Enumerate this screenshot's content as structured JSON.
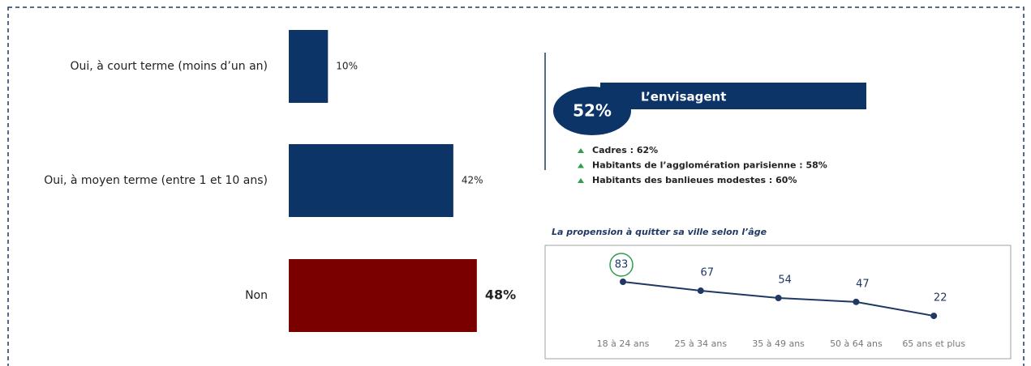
{
  "chart_data": [
    {
      "type": "hbar",
      "categories": [
        "Oui, à court terme (moins d’un an)",
        "Oui, à moyen terme (entre 1 et 10 ans)",
        "Non"
      ],
      "values": [
        10,
        42,
        48
      ],
      "value_labels": [
        "10%",
        "42%",
        "48%"
      ],
      "colors": [
        "#0d3466",
        "#0d3466",
        "#7a0000"
      ]
    },
    {
      "type": "line",
      "title": "La propension à quitter sa ville selon l’âge",
      "categories": [
        "18 à 24 ans",
        "25 à 34 ans",
        "35 à 49 ans",
        "50 à 64 ans",
        "65 ans et plus"
      ],
      "values": [
        83,
        67,
        54,
        47,
        22
      ],
      "color": "#1f3864"
    }
  ],
  "callout": {
    "value": "52%",
    "label": "L’envisagent",
    "bullets": [
      "Cadres : 62%",
      "Habitants de l’agglomération parisienne : 58%",
      "Habitants des banlieues modestes : 60%"
    ]
  }
}
